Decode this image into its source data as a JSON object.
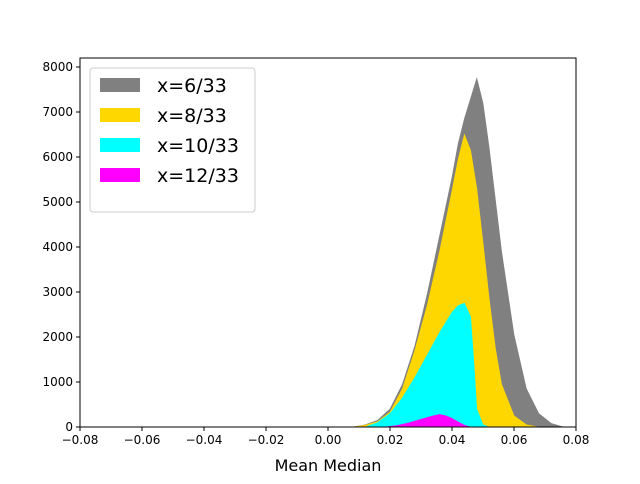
{
  "chart_data": {
    "type": "histogram",
    "xlabel": "Mean Median",
    "ylabel": "",
    "title": "",
    "xlim": [
      -0.08,
      0.08
    ],
    "ylim": [
      0,
      8200
    ],
    "x_ticks": [
      "−0.08",
      "−0.06",
      "−0.04",
      "−0.02",
      "0.00",
      "0.02",
      "0.04",
      "0.06",
      "0.08"
    ],
    "x_tick_values": [
      -0.08,
      -0.06,
      -0.04,
      -0.02,
      0.0,
      0.02,
      0.04,
      0.06,
      0.08
    ],
    "y_ticks": [
      "0",
      "1000",
      "2000",
      "3000",
      "4000",
      "5000",
      "6000",
      "7000",
      "8000"
    ],
    "y_tick_values": [
      0,
      1000,
      2000,
      3000,
      4000,
      5000,
      6000,
      7000,
      8000
    ],
    "grid": false,
    "legend_position": "top-left",
    "series": [
      {
        "name": "x=6/33",
        "color": "#808080",
        "x": [
          0.008,
          0.012,
          0.016,
          0.02,
          0.024,
          0.028,
          0.032,
          0.036,
          0.04,
          0.042,
          0.044,
          0.046,
          0.048,
          0.05,
          0.052,
          0.054,
          0.056,
          0.06,
          0.064,
          0.068,
          0.072,
          0.076
        ],
        "values": [
          0,
          50,
          150,
          400,
          950,
          1800,
          2950,
          4250,
          5550,
          6300,
          6850,
          7300,
          7750,
          7200,
          6200,
          5050,
          3900,
          2050,
          850,
          300,
          80,
          0
        ]
      },
      {
        "name": "x=8/33",
        "color": "#FFD700",
        "x": [
          0.008,
          0.012,
          0.016,
          0.02,
          0.024,
          0.028,
          0.032,
          0.036,
          0.04,
          0.042,
          0.044,
          0.046,
          0.048,
          0.05,
          0.052,
          0.054,
          0.056,
          0.06,
          0.064,
          0.068,
          0.072
        ],
        "values": [
          0,
          40,
          120,
          330,
          850,
          1700,
          2700,
          3900,
          5250,
          5950,
          6500,
          6150,
          5300,
          4100,
          2850,
          1750,
          950,
          250,
          50,
          0,
          0
        ]
      },
      {
        "name": "x=10/33",
        "color": "#00FFFF",
        "x": [
          0.012,
          0.016,
          0.02,
          0.024,
          0.028,
          0.032,
          0.036,
          0.04,
          0.042,
          0.044,
          0.046,
          0.047,
          0.048,
          0.05,
          0.052
        ],
        "values": [
          0,
          100,
          300,
          650,
          1100,
          1600,
          2100,
          2550,
          2700,
          2750,
          2450,
          1500,
          400,
          50,
          0
        ]
      },
      {
        "name": "x=12/33",
        "color": "#FF00FF",
        "x": [
          0.018,
          0.022,
          0.026,
          0.03,
          0.034,
          0.036,
          0.038,
          0.04,
          0.042,
          0.044,
          0.046
        ],
        "values": [
          0,
          30,
          90,
          170,
          250,
          280,
          250,
          190,
          110,
          40,
          0
        ]
      }
    ]
  }
}
